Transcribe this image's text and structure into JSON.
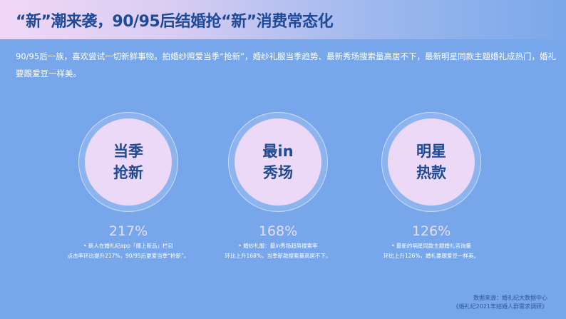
{
  "header": {
    "title": "“新”潮来袭，90/95后结婚抢“新”消费常态化"
  },
  "intro": "90/95后一族，喜欢尝试一切新鲜事物。拍婚纱照爱当季“抢新”，婚纱礼服当季趋势、最新秀场搜索量高居不下，最新明星同款主题婚礼成热门，婚礼要跟爱豆一样美。",
  "colors": {
    "background": "#77a7ea",
    "title": "#1e4a97",
    "circle": "#ecd9f7"
  },
  "items": [
    {
      "line1": "当季",
      "line2": "抢新",
      "stat": "217%",
      "desc1": "• 新人在婚礼纪app「爆上新品」栏目",
      "desc2": "点击率环比提升217%，90/95后更爱当季“抢新”。"
    },
    {
      "line1": "最in",
      "line2": "秀场",
      "stat": "168%",
      "desc1": "• 婚纱礼服：最in秀场趋势搜索率",
      "desc2": "环比上升168%，当季新款搜索量高居不下。"
    },
    {
      "line1": "明星",
      "line2": "热款",
      "stat": "126%",
      "desc1": "• 最新的明星同款主题婚礼咨询量",
      "desc2": "环比上升126%，婚礼要跟爱豆一样美。"
    }
  ],
  "source": {
    "line1": "数据来源：婚礼纪大数据中心",
    "line2": "《婚礼纪2021年结婚人群需求调研》"
  }
}
